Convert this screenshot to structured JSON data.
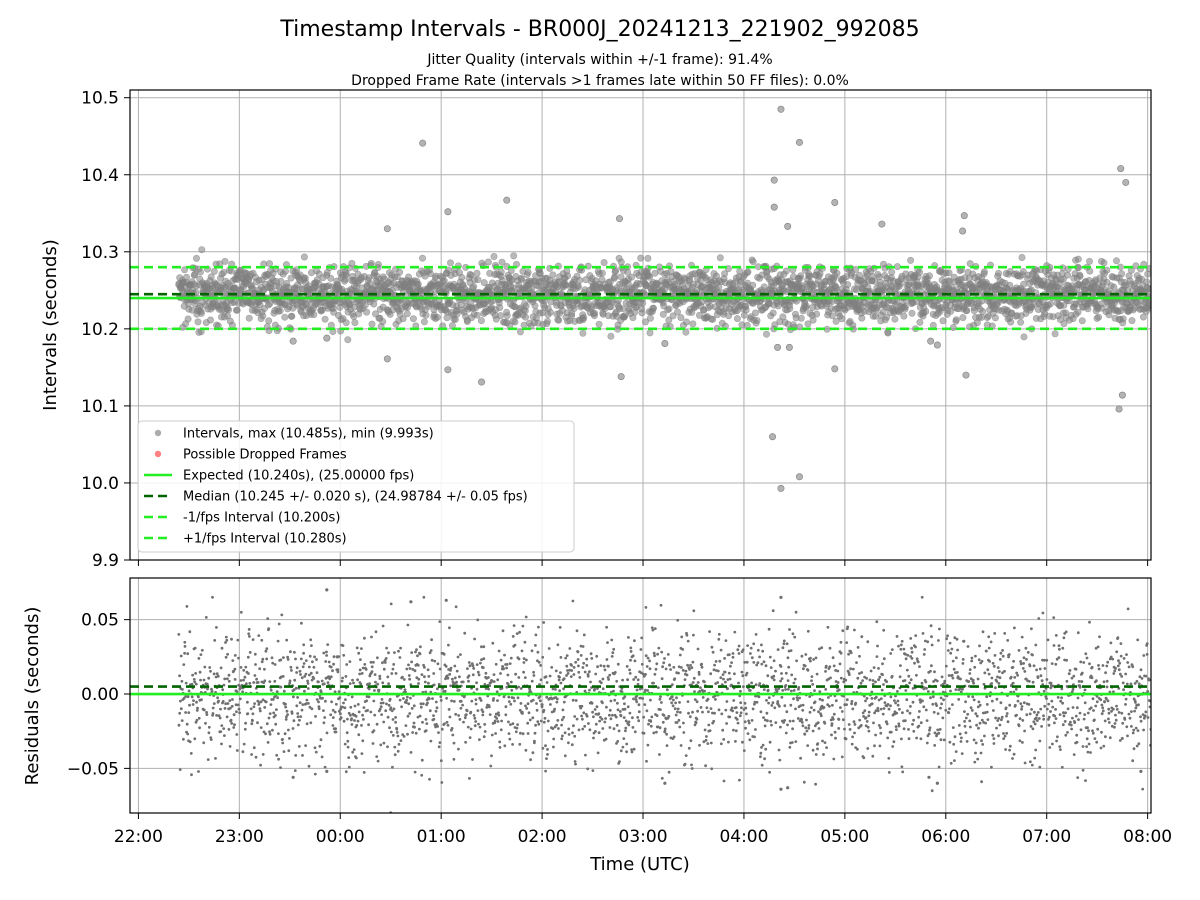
{
  "title": "Timestamp Intervals - BR000J_20241213_221902_992085",
  "subtitle_1": "Jitter Quality (intervals within +/-1 frame): 91.4%",
  "subtitle_2": "Dropped Frame Rate (intervals >1 frames late within 50 FF files): 0.0%",
  "colors": {
    "points": "#808080",
    "dropped": "#ff5555",
    "expected": "#22ee22",
    "median": "#006400",
    "interval": "#22ee22",
    "grid": "#b0b0b0"
  },
  "chart_data": [
    {
      "type": "scatter",
      "panel": "top",
      "ylabel": "Intervals (seconds)",
      "xlabel": "",
      "x_axis": "time",
      "xlim": [
        "21:55",
        "08:02"
      ],
      "ylim": [
        9.9,
        10.51
      ],
      "x_ticks": [
        "22:00",
        "23:00",
        "00:00",
        "01:00",
        "02:00",
        "03:00",
        "04:00",
        "05:00",
        "06:00",
        "07:00",
        "08:00"
      ],
      "y_ticks": [
        "9.9",
        "10.0",
        "10.1",
        "10.2",
        "10.3",
        "10.4",
        "10.5"
      ],
      "y_tick_values": [
        9.9,
        10.0,
        10.1,
        10.2,
        10.3,
        10.4,
        10.5
      ],
      "grid": true,
      "legend_position": "lower-left",
      "legend": [
        {
          "label": "Intervals, max (10.485s), min (9.993s)",
          "kind": "marker",
          "color": "#909090"
        },
        {
          "label": "Possible Dropped Frames",
          "kind": "marker",
          "color": "#ff5555"
        },
        {
          "label": "Expected (10.240s), (25.00000 fps)",
          "kind": "line",
          "color": "#22ee22",
          "dash": ""
        },
        {
          "label": "Median (10.245 +/- 0.020 s), (24.98784 +/- 0.05 fps)",
          "kind": "line",
          "color": "#006400",
          "dash": "9,5"
        },
        {
          "label": "-1/fps Interval (10.200s)",
          "kind": "line",
          "color": "#22ee22",
          "dash": "9,5"
        },
        {
          "label": "+1/fps Interval (10.280s)",
          "kind": "line",
          "color": "#22ee22",
          "dash": "9,5"
        }
      ],
      "reference_lines": {
        "expected": 10.24,
        "median": 10.245,
        "minus_interval": 10.2,
        "plus_interval": 10.28
      },
      "data_range": {
        "start": "22:24",
        "end": "08:02"
      },
      "outliers": [
        {
          "x": "00:49",
          "y": 10.441
        },
        {
          "x": "01:04",
          "y": 10.352
        },
        {
          "x": "01:39",
          "y": 10.367
        },
        {
          "x": "04:22",
          "y": 10.485
        },
        {
          "x": "04:33",
          "y": 10.442
        },
        {
          "x": "04:18",
          "y": 10.393
        },
        {
          "x": "04:18",
          "y": 10.358
        },
        {
          "x": "07:44",
          "y": 10.408
        },
        {
          "x": "07:47",
          "y": 10.39
        },
        {
          "x": "02:46",
          "y": 10.343
        },
        {
          "x": "04:54",
          "y": 10.364
        },
        {
          "x": "05:22",
          "y": 10.336
        },
        {
          "x": "06:11",
          "y": 10.347
        },
        {
          "x": "06:10",
          "y": 10.327
        },
        {
          "x": "04:26",
          "y": 10.333
        },
        {
          "x": "00:28",
          "y": 10.33
        },
        {
          "x": "01:04",
          "y": 10.147
        },
        {
          "x": "01:24",
          "y": 10.131
        },
        {
          "x": "02:47",
          "y": 10.138
        },
        {
          "x": "00:28",
          "y": 10.161
        },
        {
          "x": "04:54",
          "y": 10.148
        },
        {
          "x": "06:12",
          "y": 10.14
        },
        {
          "x": "07:45",
          "y": 10.114
        },
        {
          "x": "07:43",
          "y": 10.096
        },
        {
          "x": "04:17",
          "y": 10.06
        },
        {
          "x": "04:33",
          "y": 10.008
        },
        {
          "x": "04:22",
          "y": 9.993
        },
        {
          "x": "04:20",
          "y": 10.176
        },
        {
          "x": "04:27",
          "y": 10.176
        },
        {
          "x": "05:51",
          "y": 10.184
        },
        {
          "x": "05:55",
          "y": 10.179
        },
        {
          "x": "03:13",
          "y": 10.181
        },
        {
          "x": "23:32",
          "y": 10.184
        },
        {
          "x": "23:52",
          "y": 10.188
        },
        {
          "x": "01:39",
          "y": 10.208
        }
      ]
    },
    {
      "type": "scatter",
      "panel": "bottom",
      "ylabel": "Residuals (seconds)",
      "xlabel": "Time (UTC)",
      "x_axis": "time",
      "xlim": [
        "21:55",
        "08:02"
      ],
      "ylim": [
        -0.08,
        0.078
      ],
      "x_ticks": [
        "22:00",
        "23:00",
        "00:00",
        "01:00",
        "02:00",
        "03:00",
        "04:00",
        "05:00",
        "06:00",
        "07:00",
        "08:00"
      ],
      "y_ticks": [
        "0.05",
        "0.00",
        "−0.05"
      ],
      "y_tick_values": [
        0.05,
        0.0,
        -0.05
      ],
      "grid": true,
      "reference_lines": {
        "zero": 0.0,
        "median_offset": 0.005
      },
      "data_range": {
        "start": "22:24",
        "end": "08:02"
      },
      "outliers": [
        {
          "x": "23:52",
          "y": 0.07
        },
        {
          "x": "23:52",
          "y": -0.052
        },
        {
          "x": "00:30",
          "y": -0.08
        },
        {
          "x": "04:22",
          "y": 0.065
        },
        {
          "x": "04:22",
          "y": -0.064
        },
        {
          "x": "04:26",
          "y": -0.063
        },
        {
          "x": "05:50",
          "y": -0.056
        },
        {
          "x": "05:55",
          "y": -0.06
        },
        {
          "x": "03:13",
          "y": -0.06
        },
        {
          "x": "00:42",
          "y": 0.062
        },
        {
          "x": "01:03",
          "y": 0.063
        },
        {
          "x": "07:56",
          "y": -0.052
        },
        {
          "x": "23:32",
          "y": -0.056
        }
      ]
    }
  ]
}
